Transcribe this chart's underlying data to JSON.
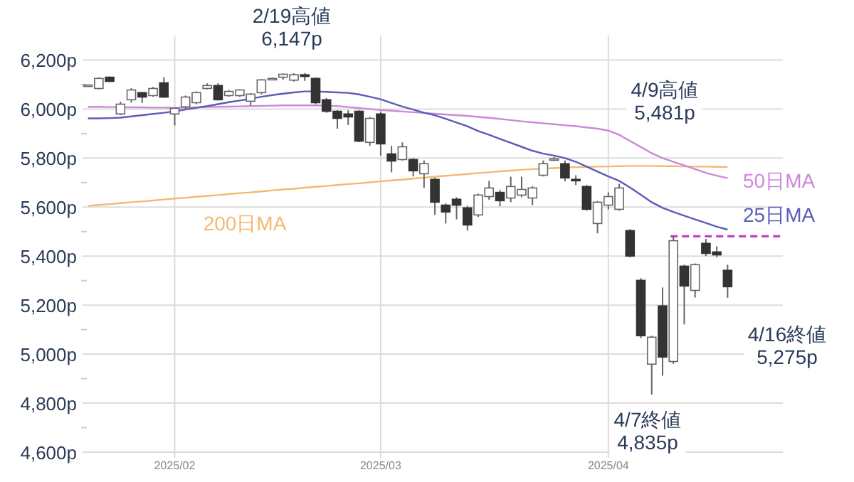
{
  "chart_data": {
    "type": "candlestick",
    "categories": [
      null,
      null,
      null,
      null,
      null,
      null,
      null,
      null,
      "2025/02",
      null,
      null,
      null,
      null,
      null,
      null,
      null,
      null,
      null,
      null,
      null,
      null,
      null,
      null,
      null,
      null,
      null,
      null,
      "2025/03",
      null,
      null,
      null,
      null,
      null,
      null,
      null,
      null,
      null,
      null,
      null,
      null,
      null,
      null,
      null,
      null,
      null,
      null,
      null,
      null,
      "2025/04",
      null,
      null,
      null,
      null,
      null,
      null,
      null,
      null,
      null,
      null,
      null
    ],
    "ohlc": [
      [
        6095,
        6100,
        6092,
        6098
      ],
      [
        6084,
        6130,
        6080,
        6125
      ],
      [
        6130,
        6133,
        6110,
        6113
      ],
      [
        5980,
        6030,
        5975,
        6020
      ],
      [
        6038,
        6085,
        6026,
        6078
      ],
      [
        6067,
        6070,
        6025,
        6049
      ],
      [
        6055,
        6090,
        6050,
        6084
      ],
      [
        6107,
        6130,
        6045,
        6049
      ],
      [
        5980,
        6005,
        5933,
        6003
      ],
      [
        6009,
        6055,
        6000,
        6049
      ],
      [
        6026,
        6072,
        6020,
        6067
      ],
      [
        6084,
        6105,
        6080,
        6096
      ],
      [
        6096,
        6105,
        6035,
        6038
      ],
      [
        6055,
        6078,
        6050,
        6072
      ],
      [
        6055,
        6080,
        6050,
        6078
      ],
      [
        6032,
        6065,
        6015,
        6061
      ],
      [
        6067,
        6122,
        6060,
        6119
      ],
      [
        6122,
        6128,
        6118,
        6125
      ],
      [
        6130,
        6145,
        6120,
        6142
      ],
      [
        6118,
        6146,
        6112,
        6140
      ],
      [
        6140,
        6147,
        6115,
        6133
      ],
      [
        6125,
        6130,
        6020,
        6026
      ],
      [
        6038,
        6045,
        5985,
        5991
      ],
      [
        5991,
        5995,
        5920,
        5962
      ],
      [
        5980,
        5995,
        5935,
        5968
      ],
      [
        5991,
        5995,
        5865,
        5869
      ],
      [
        5864,
        5968,
        5850,
        5962
      ],
      [
        5980,
        5990,
        5810,
        5858
      ],
      [
        5817,
        5850,
        5742,
        5788
      ],
      [
        5794,
        5864,
        5790,
        5846
      ],
      [
        5794,
        5800,
        5725,
        5748
      ],
      [
        5736,
        5790,
        5678,
        5777
      ],
      [
        5713,
        5720,
        5568,
        5620
      ],
      [
        5608,
        5615,
        5533,
        5580
      ],
      [
        5632,
        5640,
        5550,
        5608
      ],
      [
        5597,
        5605,
        5504,
        5527
      ],
      [
        5568,
        5655,
        5560,
        5649
      ],
      [
        5643,
        5707,
        5630,
        5678
      ],
      [
        5660,
        5670,
        5603,
        5626
      ],
      [
        5637,
        5724,
        5620,
        5684
      ],
      [
        5649,
        5724,
        5640,
        5672
      ],
      [
        5637,
        5685,
        5608,
        5678
      ],
      [
        5730,
        5790,
        5725,
        5777
      ],
      [
        5794,
        5805,
        5788,
        5797
      ],
      [
        5777,
        5790,
        5705,
        5719
      ],
      [
        5713,
        5730,
        5690,
        5710
      ],
      [
        5684,
        5690,
        5585,
        5591
      ],
      [
        5533,
        5625,
        5493,
        5620
      ],
      [
        5608,
        5660,
        5590,
        5643
      ],
      [
        5591,
        5695,
        5585,
        5678
      ],
      [
        5504,
        5510,
        5395,
        5400
      ],
      [
        5301,
        5310,
        5065,
        5075
      ],
      [
        4959,
        5075,
        4835,
        5069
      ],
      [
        5197,
        5272,
        4912,
        4988
      ],
      [
        4970,
        5481,
        4960,
        5463
      ],
      [
        5359,
        5365,
        5121,
        5278
      ],
      [
        5260,
        5370,
        5231,
        5365
      ],
      [
        5452,
        5470,
        5400,
        5411
      ],
      [
        5417,
        5440,
        5395,
        5405
      ],
      [
        5342,
        5365,
        5230,
        5275
      ]
    ],
    "series": [
      {
        "type": "line",
        "name": "200日MA",
        "color": "#f5b870",
        "values": [
          5605,
          5609,
          5612,
          5616,
          5620,
          5623,
          5627,
          5631,
          5635,
          5638,
          5642,
          5646,
          5649,
          5653,
          5657,
          5660,
          5664,
          5668,
          5672,
          5675,
          5679,
          5683,
          5686,
          5690,
          5694,
          5697,
          5701,
          5705,
          5709,
          5712,
          5716,
          5720,
          5724,
          5728,
          5731,
          5735,
          5739,
          5742,
          5746,
          5749,
          5752,
          5755,
          5757,
          5759,
          5761,
          5763,
          5764,
          5765,
          5766,
          5767,
          5768,
          5768,
          5768,
          5767,
          5767,
          5766,
          5765,
          5765,
          5764,
          5764
        ]
      },
      {
        "type": "line",
        "name": "50日MA",
        "color": "#cc88d8",
        "values": [
          6009,
          6009,
          6008,
          6008,
          6007,
          6007,
          6006,
          6006,
          6005,
          6006,
          6007,
          6008,
          6009,
          6010,
          6011,
          6012,
          6013,
          6014,
          6015,
          6015,
          6015,
          6015,
          6014,
          6012,
          6008,
          6004,
          6000,
          5996,
          5993,
          5990,
          5987,
          5984,
          5981,
          5978,
          5975,
          5972,
          5968,
          5964,
          5960,
          5955,
          5950,
          5946,
          5942,
          5938,
          5934,
          5930,
          5925,
          5920,
          5912,
          5895,
          5870,
          5845,
          5820,
          5800,
          5785,
          5770,
          5755,
          5740,
          5728,
          5718
        ]
      },
      {
        "type": "line",
        "name": "25日MA",
        "color": "#5c5cb8",
        "values": [
          5962,
          5962,
          5963,
          5965,
          5970,
          5975,
          5980,
          5985,
          5991,
          5998,
          6005,
          6012,
          6020,
          6028,
          6035,
          6042,
          6050,
          6057,
          6063,
          6068,
          6072,
          6072,
          6070,
          6068,
          6066,
          6060,
          6050,
          6040,
          6025,
          6010,
          5998,
          5985,
          5975,
          5960,
          5945,
          5930,
          5910,
          5895,
          5878,
          5862,
          5846,
          5830,
          5818,
          5810,
          5800,
          5785,
          5765,
          5745,
          5725,
          5707,
          5680,
          5650,
          5620,
          5597,
          5580,
          5565,
          5550,
          5535,
          5520,
          5508
        ]
      }
    ],
    "ylim": [
      4600,
      6300
    ],
    "yticks": [
      {
        "value": 4600,
        "label": "4,600p"
      },
      {
        "value": 4700,
        "label": null
      },
      {
        "value": 4800,
        "label": "4,800p"
      },
      {
        "value": 4900,
        "label": null
      },
      {
        "value": 5000,
        "label": "5,000p"
      },
      {
        "value": 5100,
        "label": null
      },
      {
        "value": 5200,
        "label": "5,200p"
      },
      {
        "value": 5300,
        "label": null
      },
      {
        "value": 5400,
        "label": "5,400p"
      },
      {
        "value": 5500,
        "label": null
      },
      {
        "value": 5600,
        "label": "5,600p"
      },
      {
        "value": 5700,
        "label": null
      },
      {
        "value": 5800,
        "label": "5,800p"
      },
      {
        "value": 5900,
        "label": null
      },
      {
        "value": 6000,
        "label": "6,000p"
      },
      {
        "value": 6100,
        "label": null
      },
      {
        "value": 6200,
        "label": "6,200p"
      }
    ],
    "ref_lines": [
      {
        "axis": "y",
        "value": 5481,
        "color": "#c040c0",
        "line_style": "dashed"
      }
    ],
    "annotations": [
      "2/19高値\n6,147p",
      "4/9高値\n5,481p",
      "4/16終値\n5,275p",
      "4/7終値\n4,835p"
    ],
    "grid": true
  }
}
